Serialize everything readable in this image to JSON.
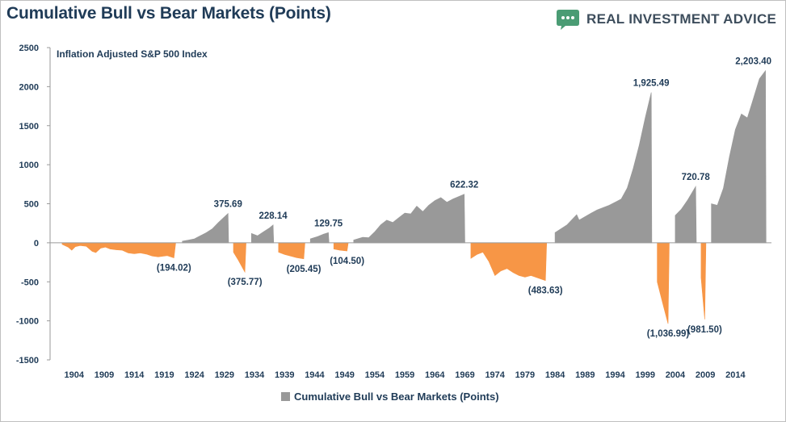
{
  "header": {
    "title": "Cumulative Bull vs Bear Markets (Points)",
    "brand": "REAL INVESTMENT ADVICE",
    "brand_color": "#4a9c74",
    "brand_icon": "chat-bubble-icon"
  },
  "chart_data": {
    "type": "area",
    "title": "Cumulative Bull vs Bear Markets (Points)",
    "subtitle": "Inflation Adjusted S&P 500 Index",
    "ylim": [
      -1500,
      2500
    ],
    "yticks": [
      2500,
      2000,
      1500,
      1000,
      500,
      0,
      -500,
      -1000,
      -1500
    ],
    "xlim": [
      1900,
      2020
    ],
    "xticks": [
      1904,
      1909,
      1914,
      1919,
      1924,
      1929,
      1934,
      1939,
      1944,
      1949,
      1954,
      1959,
      1964,
      1969,
      1974,
      1979,
      1984,
      1989,
      1994,
      1999,
      2004,
      2009,
      2014
    ],
    "grid": false,
    "legend_position": "bottom",
    "colors": {
      "bull": "#999999",
      "bear": "#f79646"
    },
    "series": [
      {
        "name": "Cumulative Bull vs Bear Markets (Points)",
        "points": [
          [
            1901.3,
            0
          ],
          [
            1902,
            -20
          ],
          [
            1903,
            -55
          ],
          [
            1903.6,
            -95
          ],
          [
            1904.2,
            -50
          ],
          [
            1905,
            -35
          ],
          [
            1906,
            -45
          ],
          [
            1907,
            -110
          ],
          [
            1907.6,
            -125
          ],
          [
            1908.4,
            -70
          ],
          [
            1909.2,
            -55
          ],
          [
            1910,
            -80
          ],
          [
            1911,
            -90
          ],
          [
            1912,
            -95
          ],
          [
            1913,
            -130
          ],
          [
            1914,
            -140
          ],
          [
            1915,
            -130
          ],
          [
            1916,
            -145
          ],
          [
            1917,
            -170
          ],
          [
            1918,
            -180
          ],
          [
            1919.5,
            -165
          ],
          [
            1920.6,
            -194.02
          ],
          [
            1920.9,
            0
          ],
          [
            1921,
            0
          ],
          [
            1922,
            20
          ],
          [
            1923,
            35
          ],
          [
            1924,
            50
          ],
          [
            1925,
            90
          ],
          [
            1926,
            130
          ],
          [
            1927,
            180
          ],
          [
            1928,
            260
          ],
          [
            1929.6,
            375.69
          ],
          [
            1929.7,
            0
          ],
          [
            1929.8,
            0
          ],
          [
            1930.5,
            -120
          ],
          [
            1931.3,
            -220
          ],
          [
            1932.4,
            -375.77
          ],
          [
            1932.6,
            0
          ],
          [
            1932.7,
            0
          ],
          [
            1933.5,
            120
          ],
          [
            1934.5,
            90
          ],
          [
            1935.5,
            140
          ],
          [
            1936.5,
            190
          ],
          [
            1937.1,
            228.14
          ],
          [
            1937.2,
            0
          ],
          [
            1937.3,
            0
          ],
          [
            1938,
            -120
          ],
          [
            1939,
            -150
          ],
          [
            1940,
            -170
          ],
          [
            1941,
            -190
          ],
          [
            1942.2,
            -205.45
          ],
          [
            1942.4,
            0
          ],
          [
            1942.5,
            0
          ],
          [
            1943.3,
            50
          ],
          [
            1944.5,
            80
          ],
          [
            1945.5,
            110
          ],
          [
            1946.3,
            129.75
          ],
          [
            1946.4,
            0
          ],
          [
            1946.5,
            0
          ],
          [
            1947.2,
            -80
          ],
          [
            1948.2,
            -95
          ],
          [
            1949.4,
            -104.5
          ],
          [
            1949.6,
            0
          ],
          [
            1949.7,
            0
          ],
          [
            1950.5,
            35
          ],
          [
            1952,
            70
          ],
          [
            1953,
            65
          ],
          [
            1954,
            140
          ],
          [
            1955,
            230
          ],
          [
            1956,
            290
          ],
          [
            1957,
            260
          ],
          [
            1958,
            320
          ],
          [
            1959,
            380
          ],
          [
            1960,
            370
          ],
          [
            1961,
            470
          ],
          [
            1962,
            400
          ],
          [
            1963,
            480
          ],
          [
            1964,
            540
          ],
          [
            1965,
            580
          ],
          [
            1966,
            520
          ],
          [
            1967,
            560
          ],
          [
            1968.9,
            622.32
          ],
          [
            1969,
            0
          ],
          [
            1969.1,
            0
          ],
          [
            1970,
            -200
          ],
          [
            1971,
            -150
          ],
          [
            1972,
            -120
          ],
          [
            1973,
            -240
          ],
          [
            1974,
            -420
          ],
          [
            1975,
            -360
          ],
          [
            1976,
            -330
          ],
          [
            1977,
            -380
          ],
          [
            1978,
            -420
          ],
          [
            1979,
            -440
          ],
          [
            1980,
            -420
          ],
          [
            1982.4,
            -483.63
          ],
          [
            1982.6,
            0
          ],
          [
            1982.7,
            0
          ],
          [
            1984,
            130
          ],
          [
            1986,
            230
          ],
          [
            1987.6,
            360
          ],
          [
            1988,
            290
          ],
          [
            1990,
            380
          ],
          [
            1991,
            420
          ],
          [
            1993,
            480
          ],
          [
            1995,
            560
          ],
          [
            1996,
            700
          ],
          [
            1997,
            950
          ],
          [
            1998,
            1250
          ],
          [
            1999,
            1600
          ],
          [
            2000,
            1925.49
          ],
          [
            2000.1,
            0
          ],
          [
            2000.2,
            0
          ],
          [
            2001,
            -500
          ],
          [
            2002,
            -800
          ],
          [
            2002.8,
            -1036.99
          ],
          [
            2003,
            0
          ],
          [
            2003.1,
            0
          ],
          [
            2004,
            350
          ],
          [
            2005,
            430
          ],
          [
            2006,
            540
          ],
          [
            2007.4,
            720.78
          ],
          [
            2007.5,
            0
          ],
          [
            2007.6,
            0
          ],
          [
            2008.3,
            -450
          ],
          [
            2008.9,
            -981.5
          ],
          [
            2009.1,
            0
          ],
          [
            2009.2,
            0
          ],
          [
            2010,
            500
          ],
          [
            2011,
            480
          ],
          [
            2012,
            700
          ],
          [
            2013,
            1100
          ],
          [
            2014,
            1450
          ],
          [
            2015,
            1650
          ],
          [
            2016,
            1600
          ],
          [
            2017,
            1850
          ],
          [
            2018,
            2100
          ],
          [
            2019,
            2203.4
          ],
          [
            2019.1,
            0
          ]
        ]
      }
    ],
    "annotations": [
      {
        "x": 1920.6,
        "y": -194.02,
        "text": "(194.02)"
      },
      {
        "x": 1929.6,
        "y": 375.69,
        "text": "375.69"
      },
      {
        "x": 1932.4,
        "y": -375.77,
        "text": "(375.77)"
      },
      {
        "x": 1937.1,
        "y": 228.14,
        "text": "228.14"
      },
      {
        "x": 1942.2,
        "y": -205.45,
        "text": "(205.45)"
      },
      {
        "x": 1946.3,
        "y": 129.75,
        "text": "129.75"
      },
      {
        "x": 1949.4,
        "y": -104.5,
        "text": "(104.50)"
      },
      {
        "x": 1968.9,
        "y": 622.32,
        "text": "622.32"
      },
      {
        "x": 1982.4,
        "y": -483.63,
        "text": "(483.63)"
      },
      {
        "x": 2000,
        "y": 1925.49,
        "text": "1,925.49"
      },
      {
        "x": 2002.8,
        "y": -1036.99,
        "text": "(1,036.99)"
      },
      {
        "x": 2007.4,
        "y": 720.78,
        "text": "720.78"
      },
      {
        "x": 2008.9,
        "y": -981.5,
        "text": "(981.50)"
      },
      {
        "x": 2019,
        "y": 2203.4,
        "text": "2,203.40"
      }
    ]
  }
}
